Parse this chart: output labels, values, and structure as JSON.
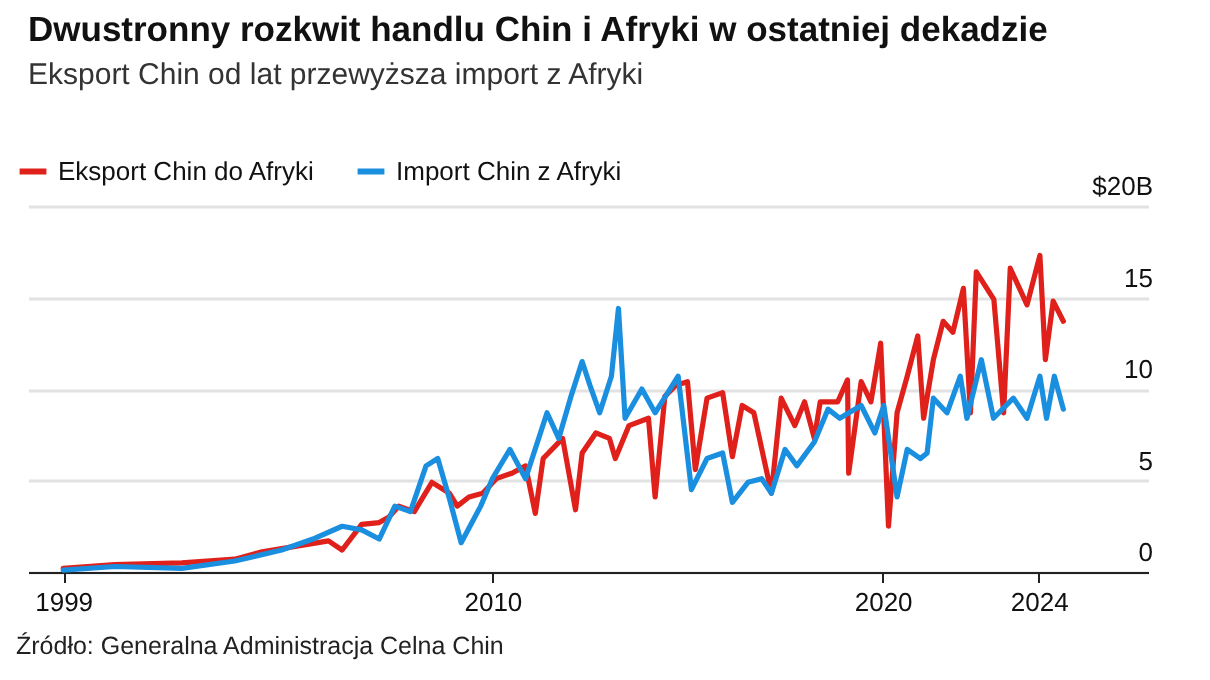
{
  "chart_data": {
    "type": "line",
    "title": "Dwustronny rozkwit handlu Chin i Afryki w ostatniej dekadzie",
    "subtitle": "Eksport Chin od lat przewyższa import z Afryki",
    "annotations": [
      "Źródło: Generalna Administracja Celna Chin"
    ],
    "xlim": [
      1998.1,
      2026.8
    ],
    "xticks": [
      1999,
      2010,
      2020,
      2024
    ],
    "ylim": [
      0,
      20
    ],
    "yticks": [
      0,
      5,
      10,
      15,
      {
        "value": 20,
        "label": "$20B"
      }
    ],
    "grid": "y",
    "legend": "top left",
    "marker": "none",
    "line_style": "solid",
    "series": [
      {
        "name": "Eksport Chin do Afryki",
        "color": "#e0201b",
        "x": [
          1999.0,
          2000.33,
          2002.04,
          2003.4,
          2004.1,
          2004.95,
          2005.8,
          2006.15,
          2006.65,
          2007.1,
          2007.35,
          2007.6,
          2008.0,
          2008.45,
          2008.9,
          2009.1,
          2009.4,
          2009.75,
          2010.1,
          2010.5,
          2010.85,
          2011.1,
          2011.3,
          2011.8,
          2012.13,
          2012.3,
          2012.65,
          2013.0,
          2013.15,
          2013.5,
          2014.0,
          2014.17,
          2014.42,
          2014.7,
          2015.0,
          2015.2,
          2015.5,
          2015.9,
          2016.15,
          2016.4,
          2016.7,
          2017.15,
          2017.4,
          2017.75,
          2018.0,
          2018.25,
          2018.4,
          2018.85,
          2019.1,
          2019.13,
          2019.45,
          2019.7,
          2019.95,
          2020.15,
          2020.37,
          2020.63,
          2020.9,
          2021.05,
          2021.3,
          2021.55,
          2021.8,
          2022.07,
          2022.25,
          2022.4,
          2022.85,
          2023.1,
          2023.27,
          2023.7,
          2024.03,
          2024.17,
          2024.37,
          2024.63
        ],
        "values": [
          0.2,
          0.4,
          0.5,
          0.7,
          1.1,
          1.4,
          1.7,
          1.2,
          2.6,
          2.7,
          3.0,
          3.6,
          3.3,
          4.9,
          4.3,
          3.6,
          4.1,
          4.3,
          5.1,
          5.4,
          5.8,
          3.2,
          6.2,
          7.3,
          3.4,
          6.5,
          7.6,
          7.3,
          6.2,
          8.0,
          8.4,
          4.1,
          9.6,
          10.2,
          10.4,
          5.6,
          9.5,
          9.8,
          6.3,
          9.1,
          8.7,
          4.3,
          9.5,
          8.0,
          9.3,
          7.3,
          9.3,
          9.3,
          10.5,
          5.4,
          10.4,
          9.3,
          12.5,
          2.5,
          8.7,
          10.7,
          12.9,
          8.4,
          11.6,
          13.7,
          13.1,
          15.5,
          8.7,
          16.4,
          14.9,
          8.7,
          16.6,
          14.6,
          17.3,
          11.6,
          14.8,
          13.7
        ]
      },
      {
        "name": "Import Chin z Afryki",
        "color": "#1a8fe0",
        "x": [
          1999.0,
          2000.33,
          2002.04,
          2003.4,
          2004.6,
          2005.4,
          2006.15,
          2006.65,
          2007.1,
          2007.5,
          2007.9,
          2008.3,
          2008.6,
          2008.9,
          2009.2,
          2009.7,
          2010.0,
          2010.45,
          2010.85,
          2011.4,
          2011.7,
          2012.0,
          2012.3,
          2012.5,
          2012.75,
          2013.05,
          2013.23,
          2013.4,
          2013.83,
          2014.17,
          2014.76,
          2015.1,
          2015.5,
          2015.9,
          2016.15,
          2016.55,
          2016.9,
          2017.15,
          2017.5,
          2017.8,
          2018.25,
          2018.6,
          2018.9,
          2019.45,
          2019.8,
          2020.03,
          2020.37,
          2020.63,
          2020.97,
          2021.14,
          2021.3,
          2021.65,
          2021.99,
          2022.16,
          2022.53,
          2022.84,
          2023.35,
          2023.7,
          2024.03,
          2024.2,
          2024.4,
          2024.63
        ],
        "values": [
          0.1,
          0.3,
          0.2,
          0.6,
          1.2,
          1.8,
          2.5,
          2.3,
          1.8,
          3.6,
          3.3,
          5.8,
          6.2,
          4.0,
          1.6,
          3.6,
          5.1,
          6.7,
          5.1,
          8.7,
          7.3,
          9.5,
          11.5,
          10.2,
          8.7,
          10.7,
          14.4,
          8.4,
          10.0,
          8.7,
          10.7,
          4.5,
          6.2,
          6.5,
          3.8,
          4.9,
          5.1,
          4.3,
          6.7,
          5.8,
          7.1,
          8.9,
          8.4,
          9.1,
          7.6,
          9.1,
          4.1,
          6.7,
          6.2,
          6.5,
          9.5,
          8.7,
          10.7,
          8.4,
          11.6,
          8.4,
          9.5,
          8.4,
          10.7,
          8.4,
          10.7,
          8.9
        ]
      }
    ]
  }
}
